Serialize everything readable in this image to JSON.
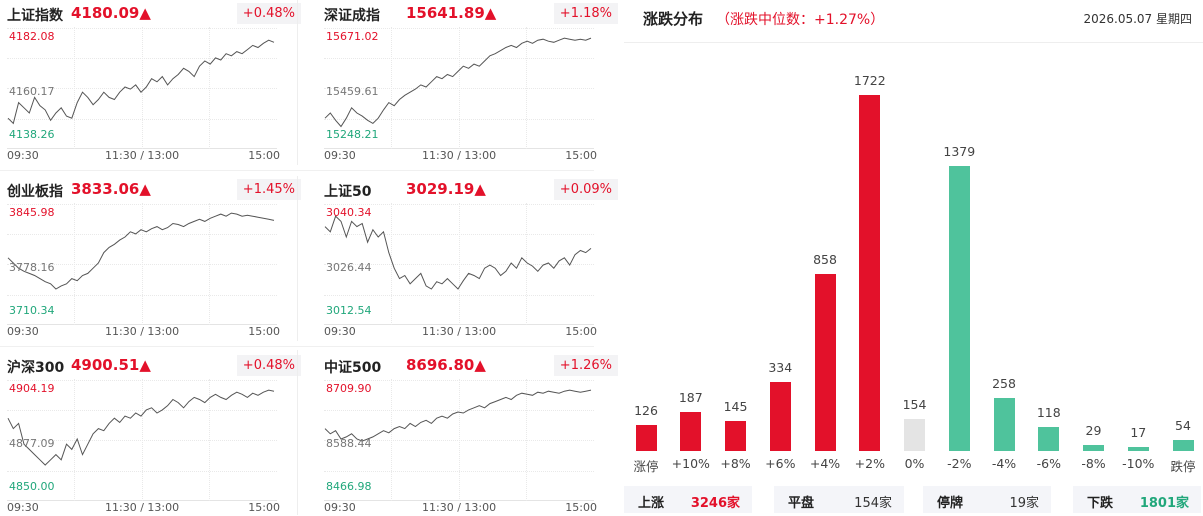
{
  "indices": [
    {
      "name": "上证指数",
      "price": "4180.09▲",
      "change": "+0.48%",
      "high": "4182.08",
      "mid": "4160.17",
      "low": "4138.26",
      "x_labels": [
        "09:30",
        "11:30 / 13:00",
        "15:00"
      ],
      "series": [
        0.2,
        0.15,
        0.35,
        0.3,
        0.25,
        0.4,
        0.32,
        0.28,
        0.18,
        0.25,
        0.3,
        0.22,
        0.2,
        0.35,
        0.45,
        0.4,
        0.33,
        0.38,
        0.45,
        0.4,
        0.38,
        0.45,
        0.5,
        0.48,
        0.52,
        0.45,
        0.5,
        0.58,
        0.55,
        0.6,
        0.52,
        0.58,
        0.62,
        0.68,
        0.65,
        0.6,
        0.7,
        0.75,
        0.72,
        0.78,
        0.76,
        0.82,
        0.8,
        0.84,
        0.82,
        0.86,
        0.9,
        0.88,
        0.92,
        0.95,
        0.93
      ]
    },
    {
      "name": "深证成指",
      "price": "15641.89▲",
      "change": "+1.18%",
      "high": "15671.02",
      "mid": "15459.61",
      "low": "15248.21",
      "x_labels": [
        "09:30",
        "11:30 / 13:00",
        "15:00"
      ],
      "series": [
        0.2,
        0.25,
        0.18,
        0.12,
        0.2,
        0.3,
        0.25,
        0.22,
        0.18,
        0.15,
        0.2,
        0.28,
        0.35,
        0.32,
        0.38,
        0.42,
        0.45,
        0.48,
        0.52,
        0.5,
        0.55,
        0.6,
        0.58,
        0.62,
        0.6,
        0.65,
        0.7,
        0.68,
        0.72,
        0.7,
        0.75,
        0.8,
        0.82,
        0.85,
        0.88,
        0.9,
        0.88,
        0.92,
        0.94,
        0.92,
        0.95,
        0.96,
        0.94,
        0.93,
        0.95,
        0.97,
        0.96,
        0.95,
        0.96,
        0.95,
        0.97
      ]
    },
    {
      "name": "创业板指",
      "price": "3833.06▲",
      "change": "+1.45%",
      "high": "3845.98",
      "mid": "3778.16",
      "low": "3710.34",
      "x_labels": [
        "09:30",
        "11:30 / 13:00",
        "15:00"
      ],
      "series": [
        0.55,
        0.5,
        0.45,
        0.42,
        0.4,
        0.38,
        0.35,
        0.32,
        0.3,
        0.25,
        0.28,
        0.3,
        0.35,
        0.33,
        0.38,
        0.4,
        0.45,
        0.5,
        0.6,
        0.65,
        0.68,
        0.72,
        0.75,
        0.8,
        0.78,
        0.82,
        0.8,
        0.83,
        0.85,
        0.82,
        0.84,
        0.88,
        0.87,
        0.85,
        0.88,
        0.9,
        0.92,
        0.9,
        0.93,
        0.95,
        0.97,
        0.95,
        0.98,
        0.97,
        0.95,
        0.96,
        0.95,
        0.94,
        0.93,
        0.92,
        0.91
      ]
    },
    {
      "name": "上证50",
      "price": "3029.19▲",
      "change": "+0.09%",
      "high": "3040.34",
      "mid": "3026.44",
      "low": "3012.54",
      "x_labels": [
        "09:30",
        "11:30 / 13:00",
        "15:00"
      ],
      "series": [
        0.85,
        0.8,
        0.95,
        0.9,
        0.75,
        0.9,
        0.85,
        0.88,
        0.7,
        0.82,
        0.75,
        0.8,
        0.6,
        0.45,
        0.35,
        0.38,
        0.3,
        0.35,
        0.4,
        0.28,
        0.25,
        0.32,
        0.3,
        0.35,
        0.3,
        0.25,
        0.33,
        0.4,
        0.38,
        0.35,
        0.45,
        0.48,
        0.45,
        0.38,
        0.42,
        0.5,
        0.45,
        0.55,
        0.5,
        0.47,
        0.42,
        0.48,
        0.5,
        0.45,
        0.52,
        0.55,
        0.48,
        0.58,
        0.62,
        0.6,
        0.64
      ]
    },
    {
      "name": "沪深300",
      "price": "4900.51▲",
      "change": "+0.48%",
      "high": "4904.19",
      "mid": "4877.09",
      "low": "4850.00",
      "x_labels": [
        "09:30",
        "11:30 / 13:00",
        "15:00"
      ],
      "series": [
        0.7,
        0.6,
        0.65,
        0.45,
        0.4,
        0.35,
        0.3,
        0.25,
        0.3,
        0.35,
        0.3,
        0.45,
        0.4,
        0.5,
        0.35,
        0.45,
        0.55,
        0.6,
        0.58,
        0.65,
        0.7,
        0.66,
        0.72,
        0.7,
        0.75,
        0.72,
        0.78,
        0.8,
        0.75,
        0.78,
        0.82,
        0.88,
        0.85,
        0.8,
        0.86,
        0.9,
        0.88,
        0.85,
        0.9,
        0.93,
        0.9,
        0.88,
        0.92,
        0.95,
        0.93,
        0.9,
        0.94,
        0.92,
        0.95,
        0.97,
        0.96
      ]
    },
    {
      "name": "中证500",
      "price": "8696.80▲",
      "change": "+1.26%",
      "high": "8709.90",
      "mid": "8588.44",
      "low": "8466.98",
      "x_labels": [
        "09:30",
        "11:30 / 13:00",
        "15:00"
      ],
      "series": [
        0.6,
        0.55,
        0.58,
        0.5,
        0.52,
        0.55,
        0.5,
        0.48,
        0.5,
        0.52,
        0.55,
        0.58,
        0.56,
        0.6,
        0.62,
        0.6,
        0.65,
        0.62,
        0.66,
        0.68,
        0.65,
        0.7,
        0.72,
        0.7,
        0.74,
        0.76,
        0.75,
        0.78,
        0.8,
        0.82,
        0.8,
        0.84,
        0.86,
        0.88,
        0.9,
        0.88,
        0.92,
        0.94,
        0.93,
        0.92,
        0.95,
        0.94,
        0.96,
        0.95,
        0.94,
        0.96,
        0.97,
        0.96,
        0.95,
        0.96,
        0.97
      ]
    }
  ],
  "distribution": {
    "title": "涨跌分布",
    "subtitle": "（涨跌中位数：+1.27%）",
    "date": "2026.05.07 星期四",
    "colors": {
      "up": "#e3112a",
      "flat": "#e4e4e4",
      "down": "#4fc39c"
    },
    "stats": [
      {
        "label": "上涨",
        "value": "3246家",
        "color": "#e3112a"
      },
      {
        "label": "平盘",
        "value": "154家",
        "color": "#333333"
      },
      {
        "label": "停牌",
        "value": "19家",
        "color": "#333333"
      },
      {
        "label": "下跌",
        "value": "1801家",
        "color": "#21a77b"
      }
    ]
  },
  "chart_data": {
    "type": "bar",
    "title": "涨跌分布",
    "categories": [
      "涨停",
      "+10%",
      "+8%",
      "+6%",
      "+4%",
      "+2%",
      "0%",
      "-2%",
      "-4%",
      "-6%",
      "-8%",
      "-10%",
      "跌停"
    ],
    "values": [
      126,
      187,
      145,
      334,
      858,
      1722,
      154,
      1379,
      258,
      118,
      29,
      17,
      54
    ],
    "data_labels": [
      "126",
      "187",
      "145",
      "334",
      "858",
      "1722",
      "154",
      "1379",
      "258",
      "118",
      "29",
      "17",
      "54"
    ],
    "ylim": [
      0,
      1722
    ],
    "grid": false
  }
}
